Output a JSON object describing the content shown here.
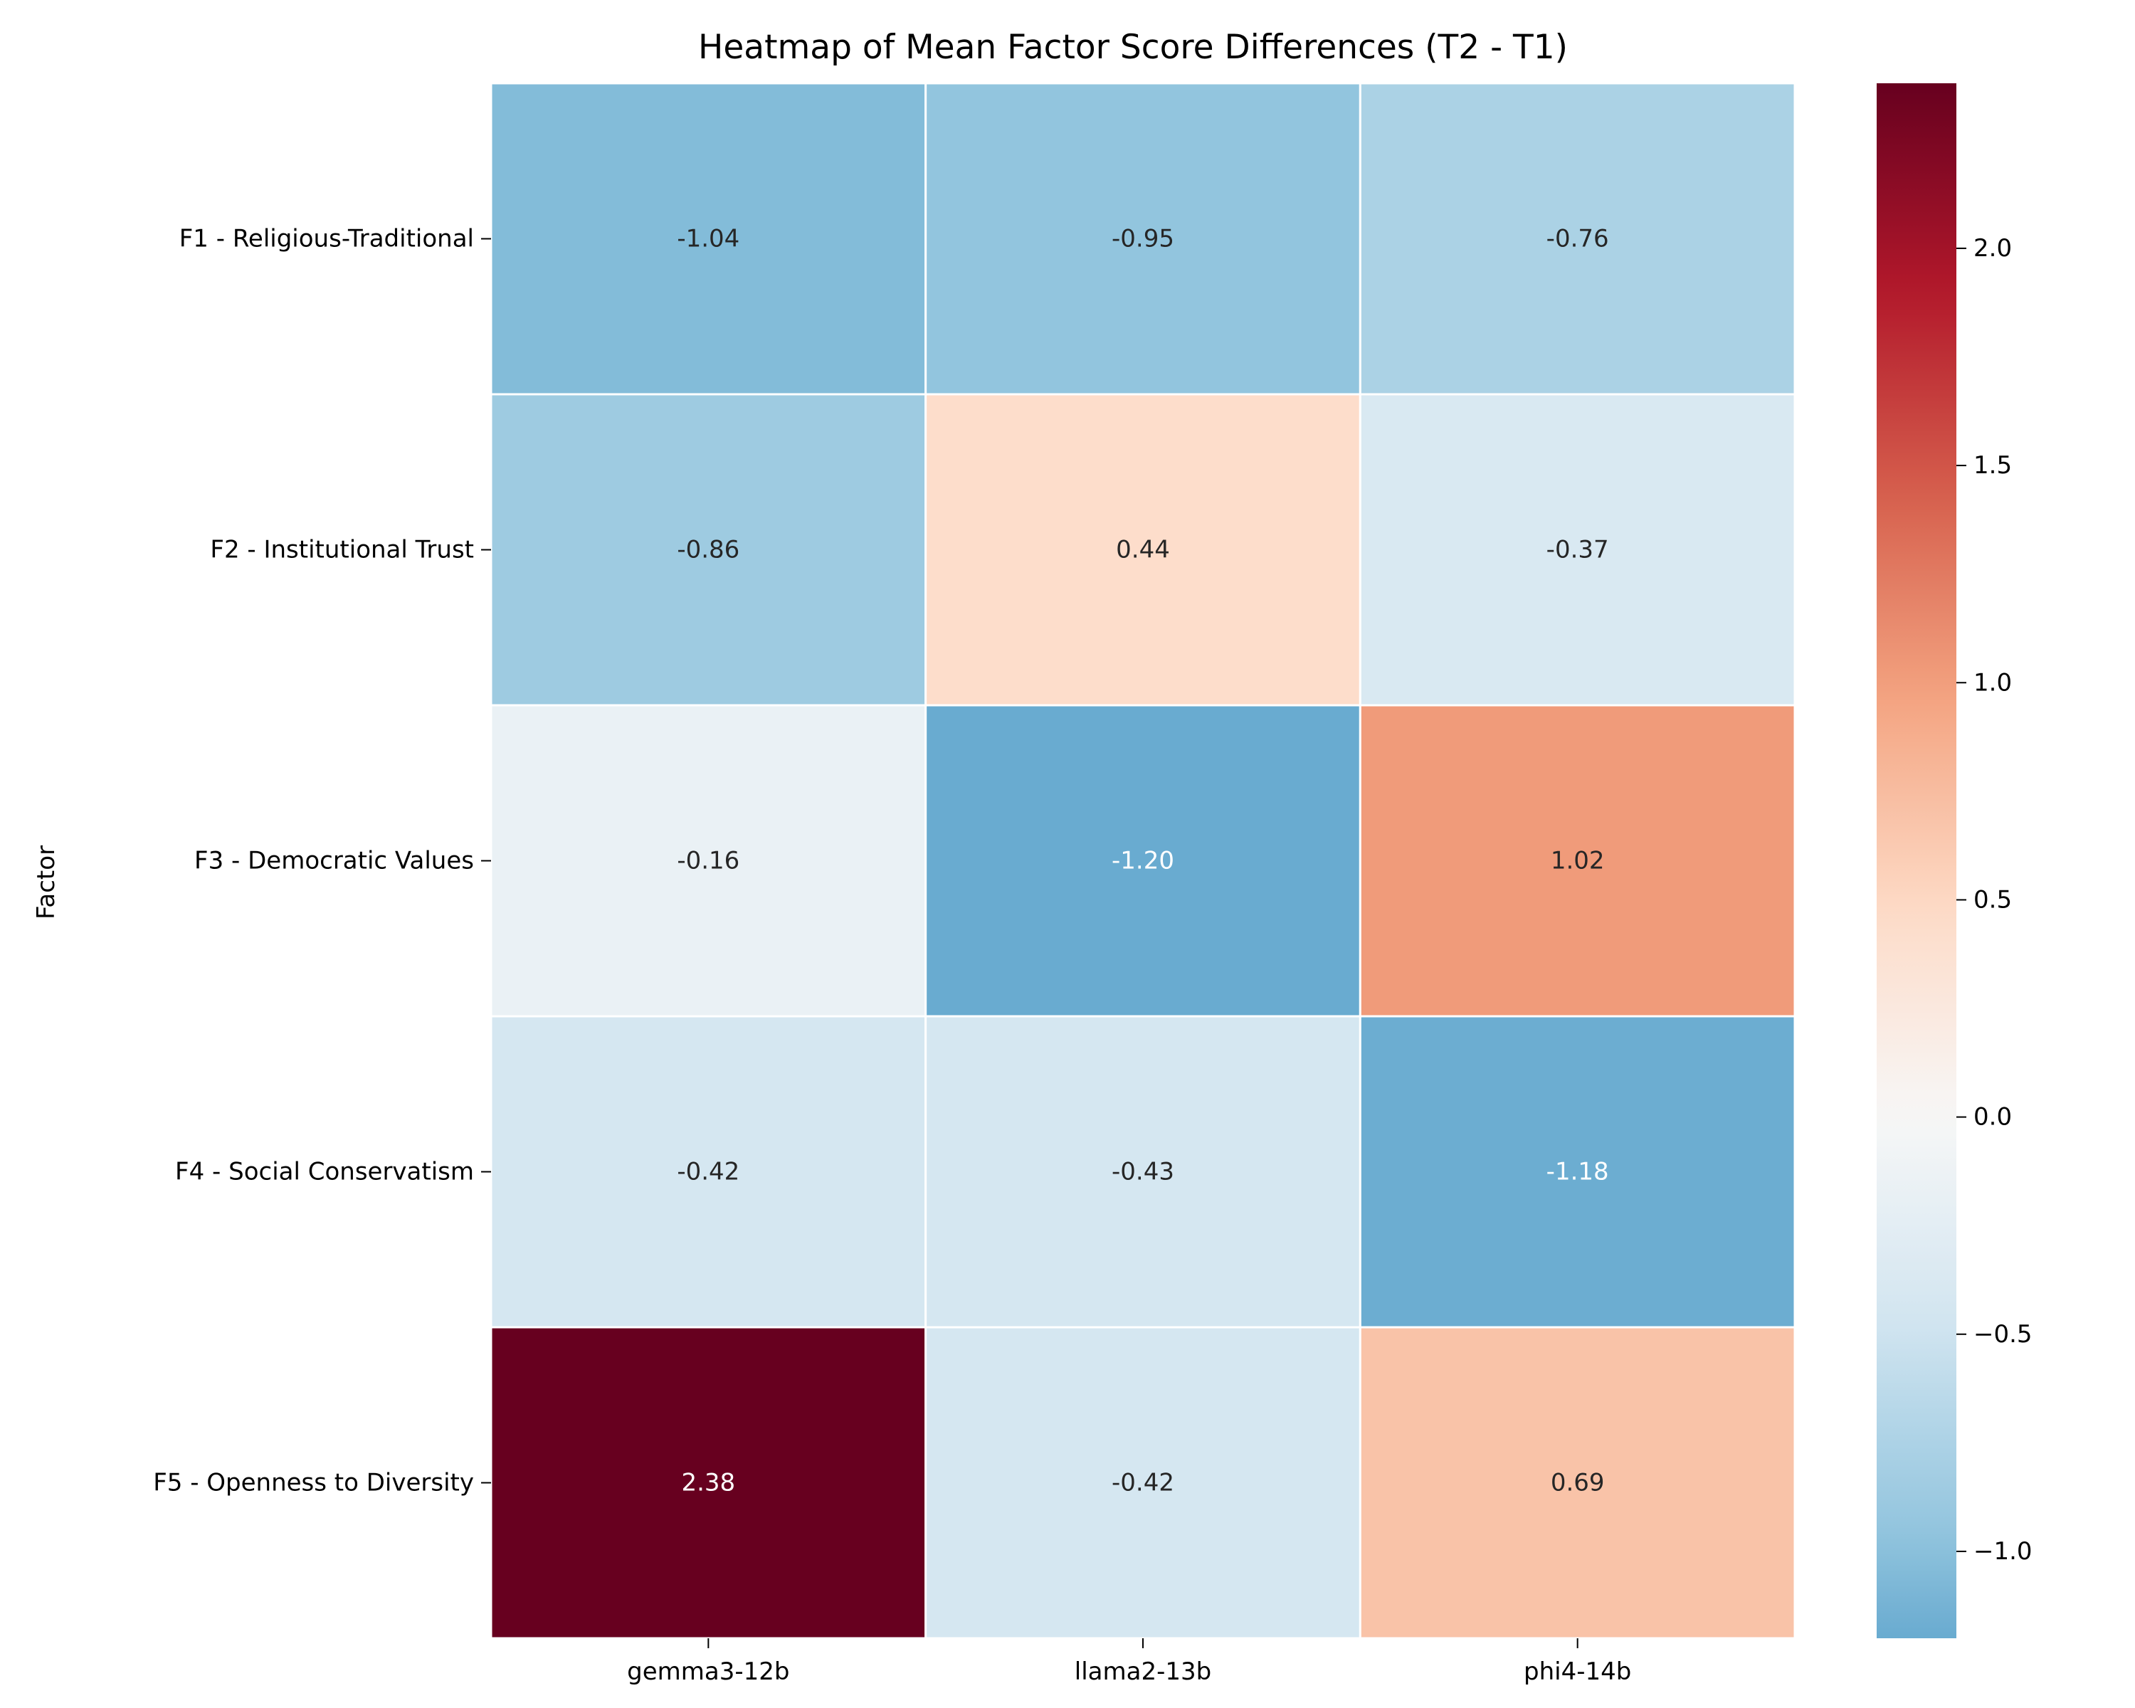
{
  "chart_data": {
    "type": "heatmap",
    "title": "Heatmap of Mean Factor Score Differences (T2 - T1)",
    "ylabel": "Factor",
    "xlabel": "",
    "columns": [
      "gemma3-12b",
      "llama2-13b",
      "phi4-14b"
    ],
    "rows": [
      "F1 - Religious-Traditional",
      "F2 - Institutional Trust",
      "F3 - Democratic Values",
      "F4 - Social Conservatism",
      "F5 - Openness to Diversity"
    ],
    "values": [
      [
        -1.04,
        -0.95,
        -0.76
      ],
      [
        -0.86,
        0.44,
        -0.37
      ],
      [
        -0.16,
        -1.2,
        1.02
      ],
      [
        -0.42,
        -0.43,
        -1.18
      ],
      [
        2.38,
        -0.42,
        0.69
      ]
    ],
    "value_format": "0.00",
    "colormap": "RdBu_r",
    "center": 0,
    "vmin": -1.2,
    "vmax": 2.38,
    "colorbar_ticks": [
      -1.0,
      -0.5,
      0.0,
      0.5,
      1.0,
      1.5,
      2.0
    ],
    "colorbar_tick_labels": [
      "−1.0",
      "−0.5",
      "0.0",
      "0.5",
      "1.0",
      "1.5",
      "2.0"
    ],
    "cell_border_color": "#ffffff"
  }
}
